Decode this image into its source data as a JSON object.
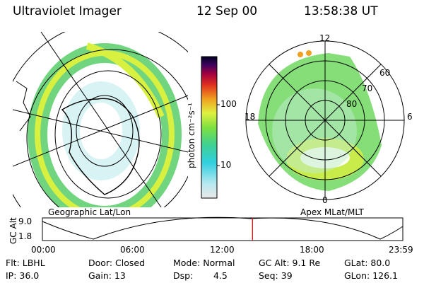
{
  "header": {
    "instrument": "Ultraviolet Imager",
    "date": "12 Sep 00",
    "time": "13:58:38 UT"
  },
  "left_panel": {
    "label": "Geographic Lat/Lon"
  },
  "right_panel": {
    "label": "Apex MLat/MLT",
    "mlt_labels": {
      "top": "12",
      "left": "18",
      "right": "6",
      "bottom": "0"
    },
    "lat_labels": [
      "60",
      "70",
      "80"
    ]
  },
  "colorbar": {
    "unit_label": "photon cm⁻²s⁻¹",
    "ticks": [
      "100",
      "10"
    ],
    "colors": [
      "#e8e8e8",
      "#b8e8f0",
      "#30d0e0",
      "#40d090",
      "#80e040",
      "#e0f040",
      "#f0a020",
      "#e03020",
      "#a00040",
      "#400060",
      "#000020"
    ]
  },
  "altitude_plot": {
    "ylabel": "GC Alt",
    "y_ticks": [
      "9.0",
      "1.8"
    ],
    "x_ticks": [
      "00:00",
      "06:00",
      "12:00",
      "18:00",
      "23:59"
    ],
    "current_time_fraction": 0.583,
    "marker_color": "#d02020"
  },
  "footer": {
    "flt": "Flt: LBHL",
    "ip": "IP: 36.0",
    "door": "Door: Closed",
    "gain": "Gain: 13",
    "mode": "Mode: Normal",
    "dsp_label": "Dsp:",
    "dsp_value": "4.5",
    "gc_alt": "GC Alt: 9.1 Re",
    "seq": "Seq: 39",
    "glat": "GLat:  80.0",
    "glon": "GLon: 126.1"
  }
}
